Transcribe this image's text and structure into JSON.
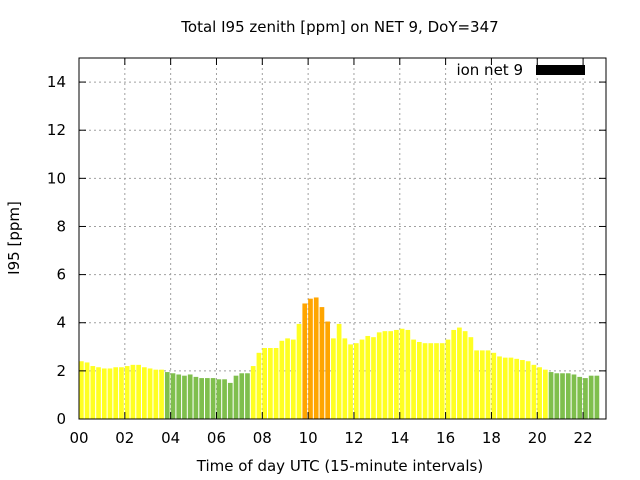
{
  "chart_data": {
    "type": "bar",
    "title": "Total I95 zenith [ppm] on NET 9, DoY=347",
    "xlabel": "Time of day UTC (15-minute intervals)",
    "ylabel": "I95 [ppm]",
    "xlim": [
      0,
      23.0
    ],
    "ylim": [
      0,
      15
    ],
    "bar_interval_hours": 0.25,
    "xticks": [
      "00",
      "02",
      "04",
      "06",
      "08",
      "10",
      "12",
      "14",
      "16",
      "18",
      "20",
      "22"
    ],
    "yticks": [
      "0",
      "2",
      "4",
      "6",
      "8",
      "10",
      "12",
      "14"
    ],
    "grid": true,
    "legend": {
      "label": "ion net 9",
      "position": "top-right",
      "swatch_color": "#000000"
    },
    "color_classes": [
      {
        "max": 2.0,
        "color": "#7fbf4d"
      },
      {
        "max": 4.0,
        "color": "#ffff22"
      },
      {
        "max": 99,
        "color": "#ffa500"
      }
    ],
    "values": [
      2.4,
      2.35,
      2.2,
      2.15,
      2.1,
      2.1,
      2.15,
      2.15,
      2.2,
      2.25,
      2.25,
      2.15,
      2.1,
      2.05,
      2.05,
      1.95,
      1.9,
      1.85,
      1.8,
      1.85,
      1.75,
      1.7,
      1.7,
      1.7,
      1.65,
      1.65,
      1.5,
      1.8,
      1.9,
      1.9,
      2.2,
      2.75,
      2.95,
      2.95,
      2.95,
      3.25,
      3.35,
      3.3,
      3.95,
      4.8,
      5.0,
      5.05,
      4.65,
      4.05,
      3.35,
      3.95,
      3.35,
      3.1,
      3.15,
      3.3,
      3.45,
      3.4,
      3.6,
      3.65,
      3.65,
      3.7,
      3.75,
      3.7,
      3.3,
      3.2,
      3.15,
      3.15,
      3.15,
      3.15,
      3.3,
      3.7,
      3.8,
      3.65,
      3.4,
      2.85,
      2.85,
      2.85,
      2.75,
      2.6,
      2.55,
      2.55,
      2.5,
      2.45,
      2.4,
      2.25,
      2.15,
      2.05,
      1.95,
      1.9,
      1.9,
      1.9,
      1.85,
      1.75,
      1.7,
      1.8,
      1.8
    ]
  }
}
